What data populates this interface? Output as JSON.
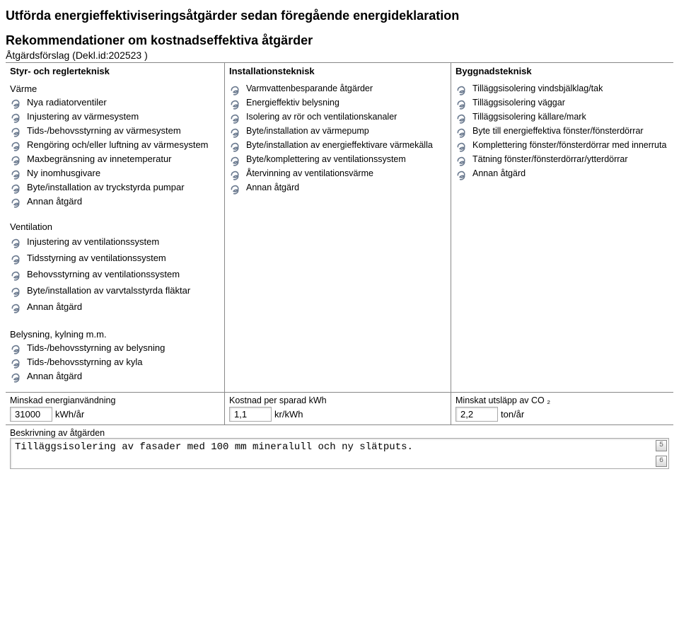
{
  "title_main": "Utförda energieffektiviseringsåtgärder sedan föregående energideklaration",
  "title_rec": "Rekommendationer om kostnadseffektiva åtgärder",
  "proposal_label": "Åtgärdsförslag (Dekl.id:202523 )",
  "col_headers": {
    "c1": "Styr- och reglerteknisk",
    "c2": "Installationsteknisk",
    "c3": "Byggnadsteknisk"
  },
  "groups": {
    "varme": "Värme",
    "ventilation": "Ventilation",
    "belysning": "Belysning, kylning m.m."
  },
  "c1_varme": [
    "Nya radiatorventiler",
    "Injustering av värmesystem",
    "Tids-/behovsstyrning av värmesystem",
    "Rengöring och/eller luftning av värmesystem",
    "Maxbegränsning av innetemperatur",
    "Ny inomhusgivare",
    "Byte/installation av tryckstyrda pumpar",
    "Annan åtgärd"
  ],
  "c2_items": [
    "Varmvattenbesparande åtgärder",
    "Energieffektiv belysning",
    "Isolering av rör och ventilationskanaler",
    "Byte/installation av värmepump",
    "Byte/installation av energieffektivare värmekälla",
    "Byte/komplettering av ventilationssystem",
    "Återvinning av ventilationsvärme",
    "Annan åtgärd"
  ],
  "c3_items": [
    "Tilläggsisolering vindsbjälklag/tak",
    "Tilläggsisolering väggar",
    "Tilläggsisolering källare/mark",
    "Byte till energieffektiva fönster/fönsterdörrar",
    "Komplettering fönster/fönsterdörrar med innerruta",
    "Tätning fönster/fönsterdörrar/ytterdörrar",
    "Annan åtgärd"
  ],
  "c1_vent": [
    "Injustering av ventilationssystem",
    "Tidsstyrning av ventilationssystem",
    "Behovsstyrning av ventilationssystem",
    "Byte/installation av varvtalsstyrda fläktar",
    "Annan åtgärd"
  ],
  "c1_bel": [
    "Tids-/behovsstyrning av belysning",
    "Tids-/behovsstyrning av kyla",
    "Annan åtgärd"
  ],
  "triple": {
    "l1": "Minskad energianvändning",
    "v1": "31000",
    "u1": "kWh/år",
    "l2": "Kostnad per sparad kWh",
    "v2": "1,1",
    "u2": "kr/kWh",
    "l3": "Minskat utsläpp av CO ₂",
    "v3": "2,2",
    "u3": "ton/år"
  },
  "desc_label": "Beskrivning av åtgärden",
  "desc_text": "Tilläggsisolering av fasader med 100 mm mineralull och ny slätputs.",
  "spin": {
    "up": "5",
    "down": "6"
  },
  "icon_color": "#6b7a8f"
}
